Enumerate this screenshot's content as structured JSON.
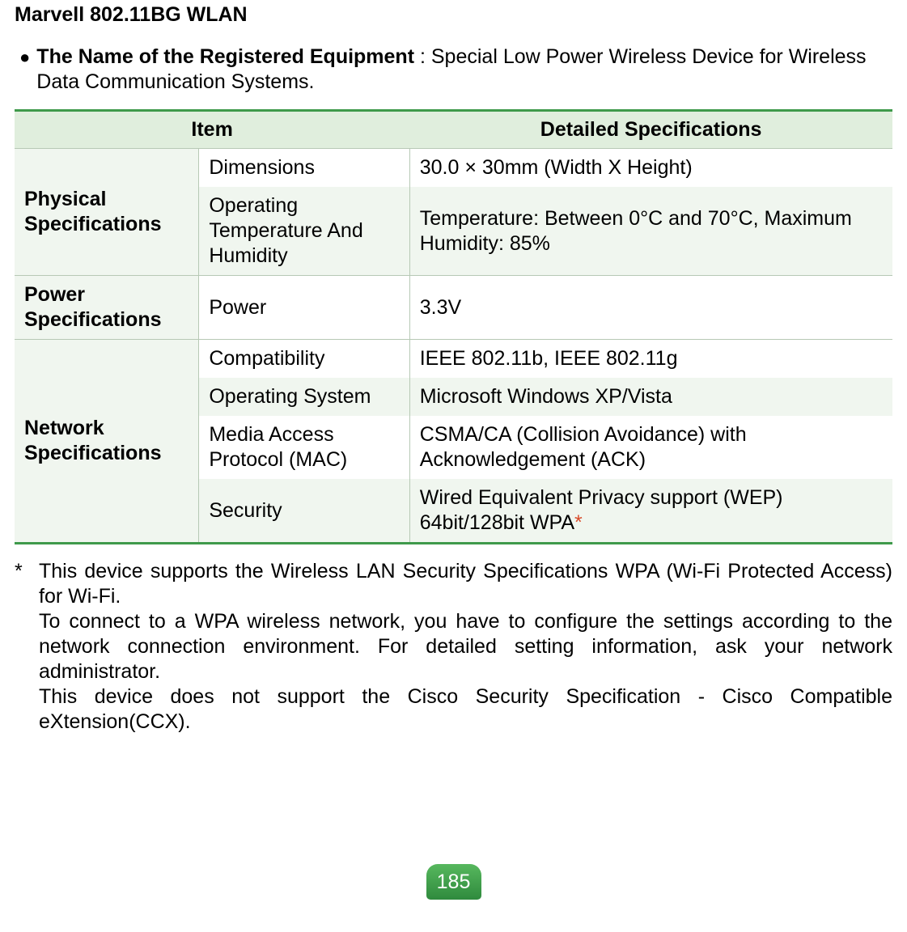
{
  "title": "Marvell 802.11BG WLAN",
  "intro": {
    "bold": "The Name of the Registered Equipment",
    "rest": " : Special Low Power Wireless Device for Wireless Data Communication Systems."
  },
  "table": {
    "head_item": "Item",
    "head_detail": "Detailed Specifications",
    "groups": [
      {
        "category": "Physical Specifications",
        "rows": [
          {
            "sub": "Dimensions",
            "val": "30.0 × 30mm (Width X Height)",
            "parity": "odd"
          },
          {
            "sub": "Operating Temperature And Humidity",
            "val": "Temperature: Between 0°C and 70°C, Maximum Humidity: 85%",
            "parity": "even"
          }
        ]
      },
      {
        "category": "Power Specifications",
        "rows": [
          {
            "sub": "Power",
            "val": "3.3V",
            "parity": "odd"
          }
        ]
      },
      {
        "category": "Network Specifications",
        "rows": [
          {
            "sub": "Compatibility",
            "val": "IEEE 802.11b, IEEE 802.11g",
            "parity": "odd"
          },
          {
            "sub": "Operating System",
            "val": "Microsoft Windows XP/Vista",
            "parity": "even"
          },
          {
            "sub": "Media Access Protocol (MAC)",
            "val": "CSMA/CA (Collision Avoidance) with Acknowledgement (ACK)",
            "parity": "odd"
          },
          {
            "sub": "Security",
            "val": "Wired Equivalent Privacy support (WEP) 64bit/128bit WPA",
            "asterisk": true,
            "parity": "even"
          }
        ]
      }
    ]
  },
  "footnote": {
    "mark": "*",
    "p1": "This device supports the Wireless LAN Security Specifications WPA (Wi-Fi Protected Access) for Wi-Fi.",
    "p2": "To connect to a WPA wireless network, you have to configure the settings according to the network connection environment. For detailed setting information, ask your network administrator.",
    "p3": "This device does not support the Cisco Security Specification - Cisco Compatible eXtension(CCX)."
  },
  "page_number": "185",
  "colors": {
    "green_border": "#3f9a4b",
    "header_bg": "#e0eedd",
    "row_alt_bg": "#f0f6ef",
    "asterisk": "#d84b2a"
  }
}
